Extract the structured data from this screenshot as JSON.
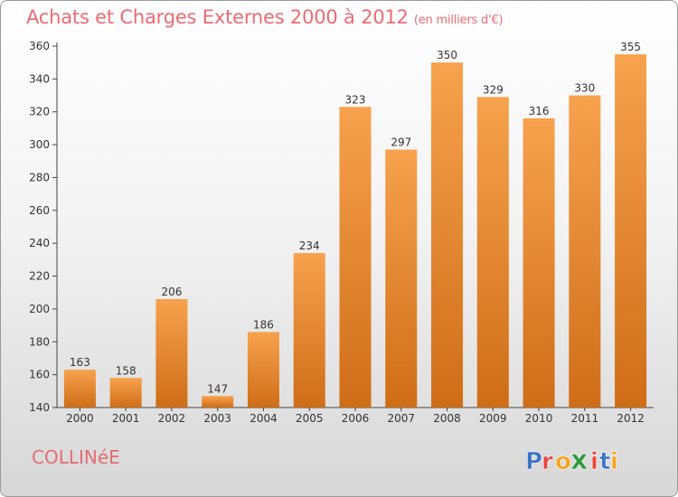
{
  "header": {
    "title": "Achats et Charges Externes 2000 à 2012",
    "unit": "(en milliers d'€)"
  },
  "commune": "COLLINéE",
  "logo": {
    "text": "Proxiti",
    "letters": [
      "P",
      "r",
      "o",
      "x",
      "i",
      "t",
      "i"
    ],
    "letter_colors": [
      "#3b74c7",
      "#e8453c",
      "#f7a11a",
      "#2f9a3c",
      "#e8453c",
      "#3b74c7",
      "#f7a11a"
    ]
  },
  "chart_data": {
    "type": "bar",
    "title": "Achats et Charges Externes 2000 à 2012",
    "subtitle": "(en milliers d'€)",
    "categories": [
      "2000",
      "2001",
      "2002",
      "2003",
      "2004",
      "2005",
      "2006",
      "2007",
      "2008",
      "2009",
      "2010",
      "2011",
      "2012"
    ],
    "values": [
      163,
      158,
      206,
      147,
      186,
      234,
      323,
      297,
      350,
      329,
      316,
      330,
      355
    ],
    "ylim": [
      140,
      360
    ],
    "yticks": [
      140,
      160,
      180,
      200,
      220,
      240,
      260,
      280,
      300,
      320,
      340,
      360
    ],
    "grid": false,
    "bar_color_top": "#f7a24e",
    "bar_color_bottom": "#cf6d17"
  }
}
